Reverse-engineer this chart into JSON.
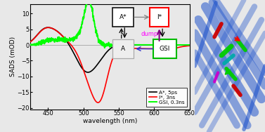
{
  "xlim": [
    425,
    650
  ],
  "ylim": [
    -20.5,
    13
  ],
  "xlabel": "wavelength (nm)",
  "ylabel": "SADS (mOD)",
  "yticks": [
    -20,
    -15,
    -10,
    -5,
    0,
    5,
    10
  ],
  "xticks": [
    450,
    500,
    550,
    600,
    650
  ],
  "bg_color": "#e8e8e8",
  "plot_bg": "#e8e8e8",
  "legend": [
    {
      "label": "A*, 5ps",
      "color": "#000000"
    },
    {
      "label": "I*, 3ns",
      "color": "#ff0000"
    },
    {
      "label": "GSI, 0.3ns",
      "color": "#00ee00"
    }
  ]
}
